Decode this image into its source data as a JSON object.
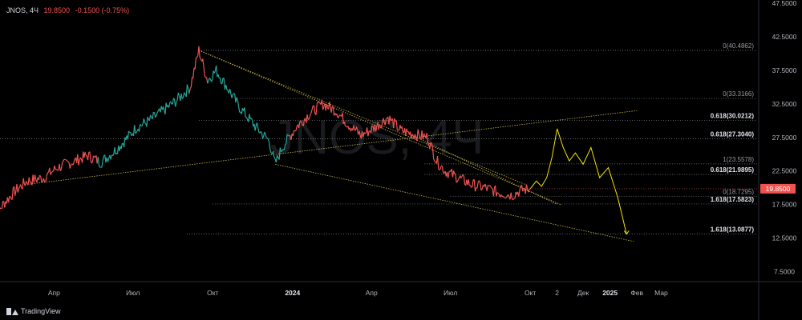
{
  "legend": {
    "symbol": "JNOS, 4Ч",
    "last": "19.8500",
    "change": "-0.1500 (-0.75%)"
  },
  "watermark": "JNOS, 4Ч",
  "brand": "TradingView",
  "colors": {
    "background": "#000000",
    "up": "#26a69a",
    "down": "#ef5350",
    "projection": "#f2e600",
    "fib_line": "#8a8d96",
    "trend_line": "#c9b84a",
    "price_label_bg": "#ef5350"
  },
  "chart_data": {
    "type": "line",
    "ylim": [
      6,
      48
    ],
    "y_ticks": [
      "47.5000",
      "42.5000",
      "37.5000",
      "32.5000",
      "27.5000",
      "22.5000",
      "17.5000",
      "12.5000",
      "7.5000"
    ],
    "x_ticks": [
      {
        "label": "Апр",
        "date": "2023-04"
      },
      {
        "label": "Июл",
        "date": "2023-07"
      },
      {
        "label": "Окт",
        "date": "2023-10"
      },
      {
        "label": "2024",
        "date": "2024-01"
      },
      {
        "label": "Апр",
        "date": "2024-04"
      },
      {
        "label": "Июл",
        "date": "2024-07"
      },
      {
        "label": "Окт",
        "date": "2024-10"
      },
      {
        "label": "2",
        "date": "2024-11"
      },
      {
        "label": "Дек",
        "date": "2024-12"
      },
      {
        "label": "2025",
        "date": "2025-01"
      },
      {
        "label": "Фев",
        "date": "2025-02"
      },
      {
        "label": "Мар",
        "date": "2025-03"
      }
    ],
    "last_price": 19.85,
    "last_price_label": "19.8500",
    "price_series": [
      {
        "date": "2023-01-20",
        "y": 15.0
      },
      {
        "date": "2023-02-01",
        "y": 17.5
      },
      {
        "date": "2023-02-15",
        "y": 19.5
      },
      {
        "date": "2023-03-01",
        "y": 21.0
      },
      {
        "date": "2023-03-20",
        "y": 21.5
      },
      {
        "date": "2023-04-05",
        "y": 23.0
      },
      {
        "date": "2023-04-25",
        "y": 24.0
      },
      {
        "date": "2023-05-10",
        "y": 24.8
      },
      {
        "date": "2023-05-25",
        "y": 23.8
      },
      {
        "date": "2023-06-10",
        "y": 25.5
      },
      {
        "date": "2023-06-25",
        "y": 27.5
      },
      {
        "date": "2023-07-05",
        "y": 29.0
      },
      {
        "date": "2023-07-20",
        "y": 30.0
      },
      {
        "date": "2023-08-05",
        "y": 31.5
      },
      {
        "date": "2023-08-20",
        "y": 33.0
      },
      {
        "date": "2023-09-05",
        "y": 35.0
      },
      {
        "date": "2023-09-15",
        "y": 40.5
      },
      {
        "date": "2023-09-25",
        "y": 36.0
      },
      {
        "date": "2023-10-05",
        "y": 37.5
      },
      {
        "date": "2023-10-15",
        "y": 35.5
      },
      {
        "date": "2023-11-01",
        "y": 32.0
      },
      {
        "date": "2023-11-20",
        "y": 29.0
      },
      {
        "date": "2023-12-05",
        "y": 27.0
      },
      {
        "date": "2023-12-12",
        "y": 23.5
      },
      {
        "date": "2023-12-20",
        "y": 26.0
      },
      {
        "date": "2024-01-05",
        "y": 29.0
      },
      {
        "date": "2024-01-20",
        "y": 31.0
      },
      {
        "date": "2024-02-05",
        "y": 32.5
      },
      {
        "date": "2024-02-20",
        "y": 31.5
      },
      {
        "date": "2024-03-05",
        "y": 29.5
      },
      {
        "date": "2024-03-20",
        "y": 27.8
      },
      {
        "date": "2024-04-05",
        "y": 29.0
      },
      {
        "date": "2024-04-20",
        "y": 30.5
      },
      {
        "date": "2024-05-05",
        "y": 28.5
      },
      {
        "date": "2024-05-20",
        "y": 28.0
      },
      {
        "date": "2024-06-05",
        "y": 27.5
      },
      {
        "date": "2024-06-15",
        "y": 24.0
      },
      {
        "date": "2024-06-25",
        "y": 22.5
      },
      {
        "date": "2024-07-10",
        "y": 21.5
      },
      {
        "date": "2024-07-25",
        "y": 20.5
      },
      {
        "date": "2024-08-10",
        "y": 20.0
      },
      {
        "date": "2024-08-25",
        "y": 19.3
      },
      {
        "date": "2024-09-10",
        "y": 18.9
      },
      {
        "date": "2024-09-20",
        "y": 19.6
      },
      {
        "date": "2024-10-01",
        "y": 19.85
      }
    ],
    "projection_series": [
      {
        "date": "2024-10-01",
        "y": 19.85
      },
      {
        "date": "2024-10-08",
        "y": 21.0
      },
      {
        "date": "2024-10-14",
        "y": 20.2
      },
      {
        "date": "2024-10-20",
        "y": 21.5
      },
      {
        "date": "2024-10-26",
        "y": 24.5
      },
      {
        "date": "2024-11-01",
        "y": 28.8
      },
      {
        "date": "2024-11-08",
        "y": 26.0
      },
      {
        "date": "2024-11-15",
        "y": 24.0
      },
      {
        "date": "2024-11-22",
        "y": 25.2
      },
      {
        "date": "2024-12-01",
        "y": 23.5
      },
      {
        "date": "2024-12-10",
        "y": 26.0
      },
      {
        "date": "2024-12-20",
        "y": 21.5
      },
      {
        "date": "2024-12-30",
        "y": 23.0
      },
      {
        "date": "2025-01-10",
        "y": 18.5
      },
      {
        "date": "2025-01-20",
        "y": 13.1
      }
    ],
    "fib_levels": [
      {
        "label": "0(40.4862)",
        "value": 40.4862,
        "from": "2023-09-15",
        "to": "2025-03-31"
      },
      {
        "label": "0(33.3166)",
        "value": 33.3166,
        "from": "2023-11-01",
        "to": "2025-03-31"
      },
      {
        "label": "0.618(30.0212)",
        "value": 30.0212,
        "from": "2023-09-15",
        "to": "2025-03-31"
      },
      {
        "label": "0.618(27.3040)",
        "value": 27.3,
        "from": "2023-01-01",
        "to": "2025-03-31"
      },
      {
        "label": "1(23.5578)",
        "value": 23.5578,
        "from": "2024-06-01",
        "to": "2025-03-31"
      },
      {
        "label": "0.618(21.9895)",
        "value": 21.9895,
        "from": "2024-06-01",
        "to": "2025-03-31"
      },
      {
        "label": "0(18.7295)",
        "value": 18.7295,
        "from": "2024-07-01",
        "to": "2025-03-31"
      },
      {
        "label": "1.618(17.5823)",
        "value": 17.5823,
        "from": "2023-10-01",
        "to": "2025-03-31"
      },
      {
        "label": "1.618(13.0877)",
        "value": 13.0877,
        "from": "2023-09-01",
        "to": "2025-03-31"
      }
    ],
    "trend_lines": [
      {
        "x1": "2023-09-15",
        "y1": 40.5,
        "x2": "2024-11-05",
        "y2": 17.5
      },
      {
        "x1": "2023-09-15",
        "y1": 40.5,
        "x2": "2024-09-25",
        "y2": 20.5
      },
      {
        "x1": "2023-12-12",
        "y1": 23.5,
        "x2": "2025-01-28",
        "y2": 12.0
      },
      {
        "x1": "2023-03-01",
        "y1": 20.5,
        "x2": "2025-02-01",
        "y2": 31.5
      },
      {
        "x1": "2024-05-15",
        "y1": 28.0,
        "x2": "2024-11-01",
        "y2": 17.5
      }
    ]
  }
}
